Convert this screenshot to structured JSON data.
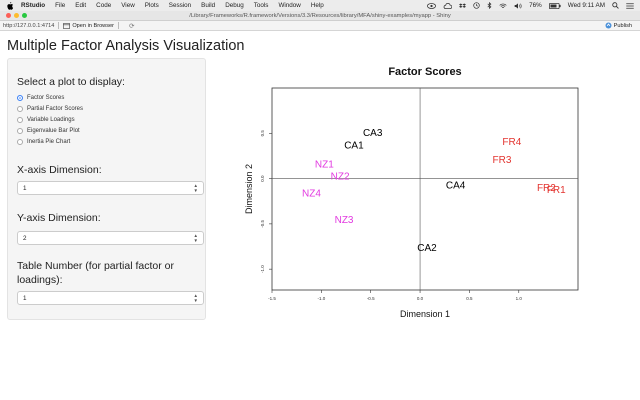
{
  "menubar": {
    "app": "RStudio",
    "items": [
      "File",
      "Edit",
      "Code",
      "View",
      "Plots",
      "Session",
      "Build",
      "Debug",
      "Tools",
      "Window",
      "Help"
    ],
    "battery": "76%",
    "clock": "Wed 9:11 AM"
  },
  "window": {
    "title": "/Library/Frameworks/R.framework/Versions/3.3/Resources/library/MFA/shiny-examples/myapp - Shiny"
  },
  "toolbar": {
    "url": "http://127.0.0.1:4714",
    "open_in_browser": "Open in Browser",
    "publish": "Publish"
  },
  "app": {
    "title": "Multiple Factor Analysis Visualization"
  },
  "sidebar": {
    "plot_select_label": "Select a plot to display:",
    "plot_options": [
      {
        "label": "Factor Scores",
        "checked": true
      },
      {
        "label": "Partial Factor Scores",
        "checked": false
      },
      {
        "label": "Variable Loadings",
        "checked": false
      },
      {
        "label": "Eigenvalue Bar Plot",
        "checked": false
      },
      {
        "label": "Inertia Pie Chart",
        "checked": false
      }
    ],
    "x_label": "X-axis Dimension:",
    "x_value": "1",
    "y_label": "Y-axis Dimension:",
    "y_value": "2",
    "table_label_1": "Table Number (for partial factor or",
    "table_label_2": "loadings):",
    "table_value": "1"
  },
  "colors": {
    "black_group": "#000000",
    "magenta_group": "#e23ae0",
    "red_group": "#e3342f",
    "radio_accent": "#3b82f6"
  },
  "chart_data": {
    "type": "scatter",
    "title": "Factor Scores",
    "xlabel": "Dimension 1",
    "ylabel": "Dimension 2",
    "xlim": [
      -1.5,
      1.6
    ],
    "ylim": [
      -1.23,
      1.0
    ],
    "xticks": [
      "-1.5",
      "-1.0",
      "-0.5",
      "0.0",
      "0.5",
      "1.0"
    ],
    "xtick_values": [
      -1.5,
      -1.0,
      -0.5,
      0.0,
      0.5,
      1.0
    ],
    "yticks": [
      "-1.0",
      "-0.5",
      "0.0",
      "0.5"
    ],
    "ytick_values": [
      -1.0,
      -0.5,
      0.0,
      0.5
    ],
    "reference_lines": {
      "x": 0,
      "y": 0
    },
    "points": [
      {
        "label": "CA3",
        "x": -0.48,
        "y": 0.5,
        "color": "#000000"
      },
      {
        "label": "CA1",
        "x": -0.67,
        "y": 0.36,
        "color": "#000000"
      },
      {
        "label": "CA4",
        "x": 0.36,
        "y": -0.08,
        "color": "#000000"
      },
      {
        "label": "CA2",
        "x": 0.07,
        "y": -0.77,
        "color": "#000000"
      },
      {
        "label": "NZ1",
        "x": -0.97,
        "y": 0.15,
        "color": "#e23ae0"
      },
      {
        "label": "NZ2",
        "x": -0.81,
        "y": 0.02,
        "color": "#e23ae0"
      },
      {
        "label": "NZ4",
        "x": -1.1,
        "y": -0.17,
        "color": "#e23ae0"
      },
      {
        "label": "NZ3",
        "x": -0.77,
        "y": -0.46,
        "color": "#e23ae0"
      },
      {
        "label": "FR4",
        "x": 0.93,
        "y": 0.4,
        "color": "#e3342f"
      },
      {
        "label": "FR3",
        "x": 0.83,
        "y": 0.2,
        "color": "#e3342f"
      },
      {
        "label": "FR2",
        "x": 1.28,
        "y": -0.11,
        "color": "#e3342f"
      },
      {
        "label": "FR1",
        "x": 1.38,
        "y": -0.13,
        "color": "#e3342f"
      }
    ]
  }
}
